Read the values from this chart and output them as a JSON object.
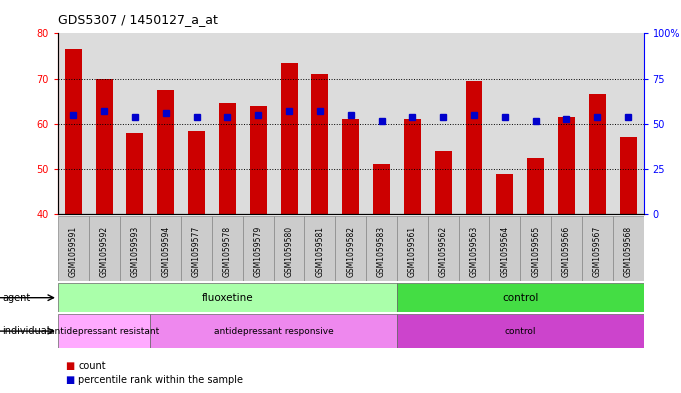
{
  "title": "GDS5307 / 1450127_a_at",
  "samples": [
    "GSM1059591",
    "GSM1059592",
    "GSM1059593",
    "GSM1059594",
    "GSM1059577",
    "GSM1059578",
    "GSM1059579",
    "GSM1059580",
    "GSM1059581",
    "GSM1059582",
    "GSM1059583",
    "GSM1059561",
    "GSM1059562",
    "GSM1059563",
    "GSM1059564",
    "GSM1059565",
    "GSM1059566",
    "GSM1059567",
    "GSM1059568"
  ],
  "counts": [
    76.5,
    70.0,
    58.0,
    67.5,
    58.5,
    64.5,
    64.0,
    73.5,
    71.0,
    61.0,
    51.0,
    61.0,
    54.0,
    69.5,
    49.0,
    52.5,
    61.5,
    66.5,
    57.0
  ],
  "percentile_right": [
    55.0,
    57.0,
    54.0,
    56.0,
    54.0,
    54.0,
    55.0,
    57.0,
    57.0,
    55.0,
    51.5,
    54.0,
    54.0,
    55.0,
    54.0,
    51.5,
    52.5,
    54.0,
    54.0
  ],
  "ylim_left": [
    40,
    80
  ],
  "ylim_right": [
    0,
    100
  ],
  "yticks_left": [
    40,
    50,
    60,
    70,
    80
  ],
  "yticks_right": [
    0,
    25,
    50,
    75,
    100
  ],
  "ytick_labels_right": [
    "0",
    "25",
    "50",
    "75",
    "100%"
  ],
  "bar_color": "#cc0000",
  "dot_color": "#0000cc",
  "agent_groups": [
    {
      "label": "fluoxetine",
      "start": 0,
      "end": 11,
      "color": "#aaffaa"
    },
    {
      "label": "control",
      "start": 11,
      "end": 19,
      "color": "#44dd44"
    }
  ],
  "individual_groups": [
    {
      "label": "antidepressant resistant",
      "start": 0,
      "end": 3,
      "color": "#ffaaff"
    },
    {
      "label": "antidepressant responsive",
      "start": 3,
      "end": 11,
      "color": "#ee88ee"
    },
    {
      "label": "control",
      "start": 11,
      "end": 19,
      "color": "#cc44cc"
    }
  ],
  "legend_count_color": "#cc0000",
  "legend_dot_color": "#0000cc",
  "background_color": "#ffffff",
  "col_bg_color": "#d8d8d8",
  "label_row_color": "#cccccc"
}
